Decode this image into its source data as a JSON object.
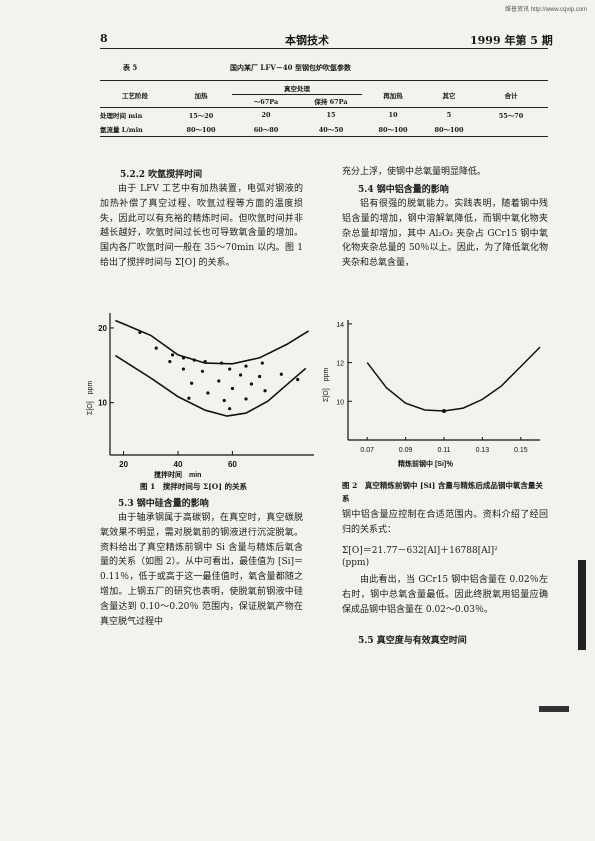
{
  "watermark": "维普资讯 http://www.cqvip.com",
  "header": {
    "page_number": "8",
    "journal": "本钢技术",
    "issue": "1999 年第 5 期"
  },
  "table": {
    "label": "表 5",
    "title": "国内某厂 LFV－40 型钢包炉吹氩参数",
    "col_stage": "工艺阶段",
    "col_heating": "加热",
    "col_vacuum": "真空处理",
    "col_vac_sub1": "～67Pa",
    "col_vac_sub2": "保持 67Pa",
    "col_reheat": "再加热",
    "col_other": "其它",
    "col_total": "合计",
    "rows": [
      {
        "label": "处理时间 min",
        "heating": "15～20",
        "vac1": "20",
        "vac2": "15",
        "reheat": "10",
        "other": "5",
        "total": "55～70"
      },
      {
        "label": "氩流量 L/min",
        "heating": "80～100",
        "vac1": "60～80",
        "vac2": "40～50",
        "reheat": "80～100",
        "other": "80～100",
        "total": ""
      }
    ]
  },
  "left": {
    "s522_title": "5.2.2 吹氩搅拌时间",
    "s522_para": "由于 LFV 工艺中有加热装置，电弧对钢液的加热补偿了真空过程、吹氩过程等方面的温度损失，因此可以有充裕的精炼时间。但吹氩时间并非越长越好，吹氩时间过长也可导致氧含量的增加。国内各厂吹氩时间一般在 35～70min 以内。图 1 给出了搅拌时间与 Σ[O] 的关系。",
    "fig1_caption": "图 1　搅拌时间与 Σ[O] 的关系",
    "s53_title": "5.3 钢中硅含量的影响",
    "s53_para": "由于轴承钢属于高碳钢，在真空时，真空碳脱氧效果不明显，需对脱氧前的钢液进行沉淀脱氧。资料给出了真空精炼前钢中 Si 含量与精炼后氧含量的关系（如图 2）。从中可看出，最佳值为 [Si]＝0.11％，低于或高于这一最佳值时，氧含量都随之增加。上钢五厂的研究也表明，使脱氧前钢液中硅含量达到 0.10～0.20％ 范围内，保证脱氧产物在真空脱气过程中"
  },
  "right": {
    "cont_line": "充分上浮，使钢中总氧量明显降低。",
    "s54_title": "5.4 钢中铝含量的影响",
    "s54_para": "铝有很强的脱氧能力。实践表明，随着钢中残铝含量的增加，钢中溶解氧降低，而钢中氧化物夹杂总量却增加，其中 Al₂O₃ 夹杂占 GCr15 钢中氧化物夹杂总量的 50％以上。因此，为了降低氧化物夹杂和总氧含量，",
    "fig2_caption": "图 2　真空精炼前钢中 [Si] 含量与精炼后成品钢中氧含量关系",
    "para_after_fig2": "钢中铝含量应控制在合适范围内。资料介绍了经回归的关系式：",
    "formula": "Σ[O]＝21.77－632[Al]＋16788[Al]²",
    "formula_unit": "(ppm)",
    "para_final": "由此看出，当 GCr15 钢中铝含量在 0.02％左右时，钢中总氧含量最低。因此终脱氧用铝量应确保成品钢中铝含量在 0.02～0.03％。",
    "s55_title": "5.5 真空度与有效真空时间"
  },
  "chart_data": [
    {
      "type": "scatter",
      "title": "",
      "xlabel": "搅拌时间　min",
      "ylabel": "Σ[O]　ppm",
      "x_ticks": [
        "20",
        "40",
        "60"
      ],
      "y_ticks": [
        "20",
        "10"
      ],
      "xlim": [
        15,
        90
      ],
      "ylim": [
        3,
        22
      ],
      "grid": false,
      "points": [
        {
          "x": 26,
          "y": 19.4
        },
        {
          "x": 32,
          "y": 17.3
        },
        {
          "x": 38,
          "y": 16.4
        },
        {
          "x": 37,
          "y": 15.5
        },
        {
          "x": 42,
          "y": 16.0
        },
        {
          "x": 46,
          "y": 15.7
        },
        {
          "x": 50,
          "y": 15.5
        },
        {
          "x": 42,
          "y": 14.5
        },
        {
          "x": 49,
          "y": 14.2
        },
        {
          "x": 56,
          "y": 15.3
        },
        {
          "x": 59,
          "y": 14.5
        },
        {
          "x": 65,
          "y": 14.9
        },
        {
          "x": 71,
          "y": 15.3
        },
        {
          "x": 63,
          "y": 13.7
        },
        {
          "x": 70,
          "y": 13.5
        },
        {
          "x": 78,
          "y": 13.8
        },
        {
          "x": 45,
          "y": 12.6
        },
        {
          "x": 55,
          "y": 12.9
        },
        {
          "x": 67,
          "y": 12.5
        },
        {
          "x": 84,
          "y": 13.1
        },
        {
          "x": 51,
          "y": 11.3
        },
        {
          "x": 60,
          "y": 11.9
        },
        {
          "x": 72,
          "y": 11.6
        },
        {
          "x": 44,
          "y": 10.6
        },
        {
          "x": 57,
          "y": 10.3
        },
        {
          "x": 65,
          "y": 10.5
        },
        {
          "x": 59,
          "y": 9.2
        }
      ],
      "upper_curve": [
        {
          "x": 17,
          "y": 21.0
        },
        {
          "x": 30,
          "y": 19.0
        },
        {
          "x": 40,
          "y": 16.4
        },
        {
          "x": 50,
          "y": 15.3
        },
        {
          "x": 60,
          "y": 15.2
        },
        {
          "x": 70,
          "y": 16.0
        },
        {
          "x": 80,
          "y": 17.8
        },
        {
          "x": 88,
          "y": 19.6
        }
      ],
      "lower_curve": [
        {
          "x": 17,
          "y": 16.3
        },
        {
          "x": 30,
          "y": 13.3
        },
        {
          "x": 40,
          "y": 10.8
        },
        {
          "x": 50,
          "y": 9.0
        },
        {
          "x": 58,
          "y": 8.2
        },
        {
          "x": 65,
          "y": 8.6
        },
        {
          "x": 73,
          "y": 10.2
        },
        {
          "x": 80,
          "y": 12.4
        },
        {
          "x": 87,
          "y": 14.6
        }
      ]
    },
    {
      "type": "line",
      "title": "",
      "xlabel": "精炼前钢中 [Si]％",
      "ylabel": "Σ[O]　ppm",
      "x_ticks": [
        "0.07",
        "0.09",
        "0.11",
        "0.13",
        "0.15"
      ],
      "y_ticks": [
        "14",
        "12",
        "10"
      ],
      "xlim": [
        0.06,
        0.16
      ],
      "ylim": [
        8,
        14.2
      ],
      "grid": false,
      "x": [
        0.07,
        0.08,
        0.09,
        0.1,
        0.11,
        0.12,
        0.13,
        0.14,
        0.15,
        0.16
      ],
      "y": [
        12.0,
        10.7,
        9.9,
        9.55,
        9.5,
        9.65,
        10.1,
        10.8,
        11.8,
        12.8
      ],
      "markers": [
        {
          "x": 0.11,
          "y": 9.5
        }
      ]
    }
  ]
}
